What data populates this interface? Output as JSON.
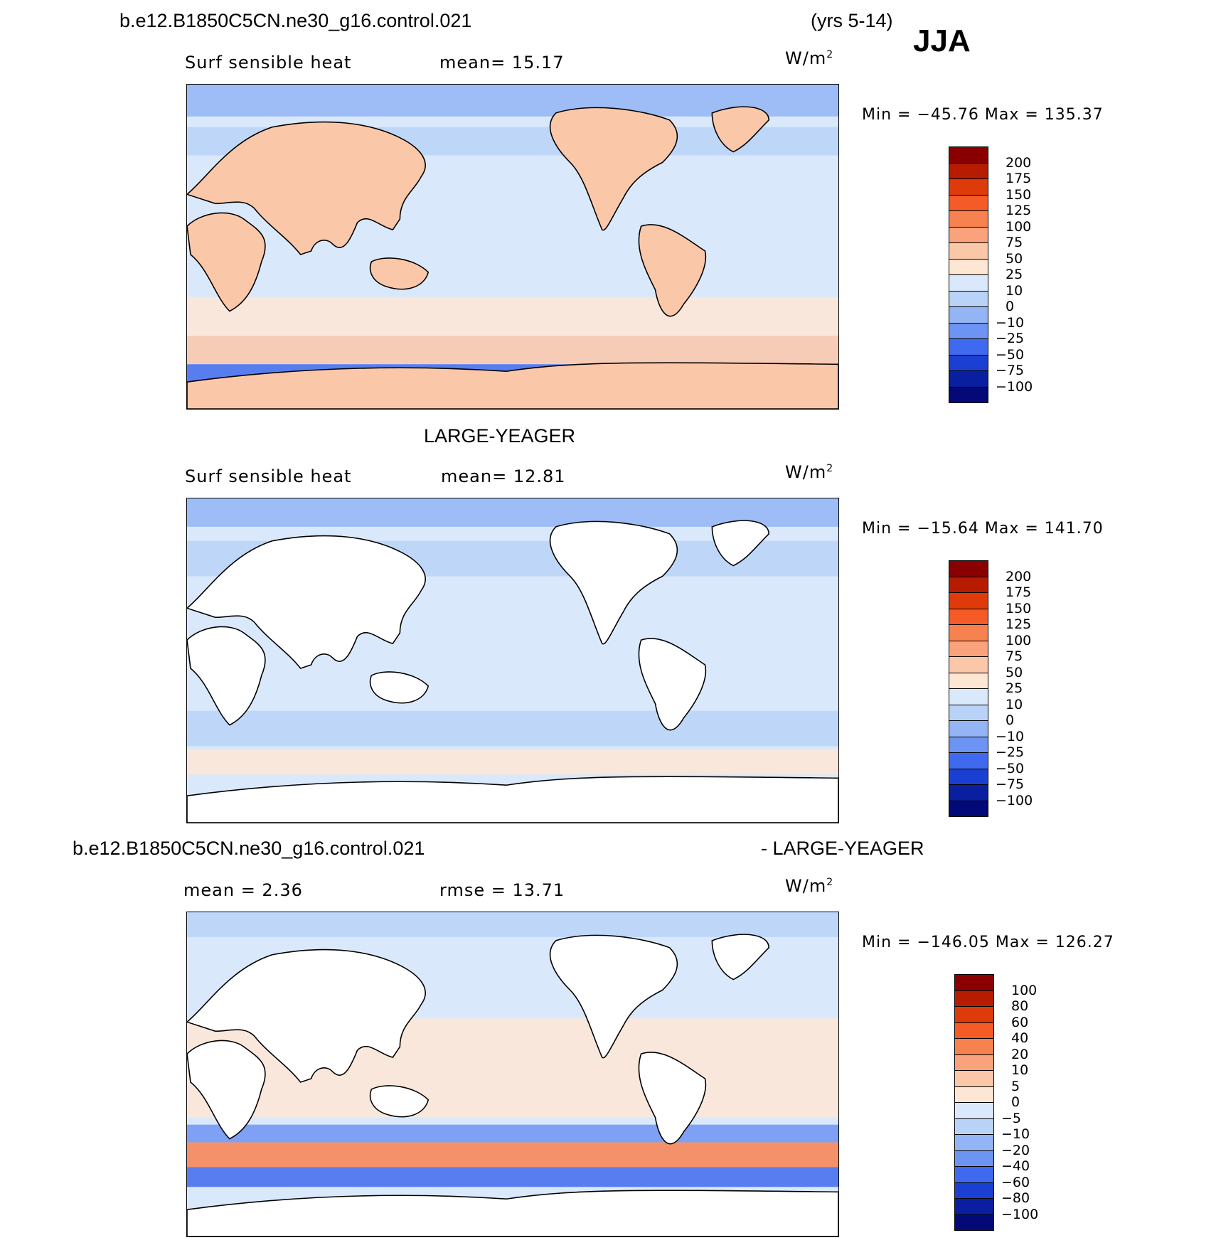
{
  "season": "JJA",
  "years": "(yrs 5-14)",
  "case_name": "b.e12.B1850C5CN.ne30_g16.control.021",
  "obs_name": "LARGE-YEAGER",
  "diff_suffix": "- LARGE-YEAGER",
  "unit_base": "W/m",
  "unit_exp": "2",
  "panels": [
    {
      "variable": "Surf sensible heat",
      "mean_text": "mean=  15.17",
      "stats_text": "Min = −45.76 Max = 135.37",
      "colorbar": "abs"
    },
    {
      "variable": "Surf sensible heat",
      "mean_text": "mean=  12.81",
      "stats_text": "Min = −15.64 Max = 141.70",
      "colorbar": "abs"
    },
    {
      "mean_text": "mean =   2.36",
      "rmse_text": "rmse =  13.71",
      "stats_text": "Min = −146.05 Max = 126.27",
      "colorbar": "diff"
    }
  ],
  "colorbars": {
    "abs": {
      "labels": [
        "200",
        "175",
        "150",
        "125",
        "100",
        "75",
        "50",
        "25",
        "10",
        "0",
        "−10",
        "−25",
        "−50",
        "−75",
        "−100"
      ],
      "colors": [
        "#8a0000",
        "#b81c00",
        "#de3a0a",
        "#f55b26",
        "#f88150",
        "#f9a27c",
        "#fbc7a9",
        "#fde6d4",
        "#d9e9fb",
        "#b9d3f8",
        "#93b5f5",
        "#6d94f3",
        "#3f6aef",
        "#1c3fd3",
        "#0a1ea0",
        "#030a78"
      ]
    },
    "diff": {
      "labels": [
        "100",
        "80",
        "60",
        "40",
        "20",
        "10",
        "5",
        "0",
        "−5",
        "−10",
        "−20",
        "−40",
        "−60",
        "−80",
        "−100"
      ],
      "colors": [
        "#8a0000",
        "#b81c00",
        "#de3a0a",
        "#f55b26",
        "#f88150",
        "#f9a27c",
        "#fbc7a9",
        "#fde6d4",
        "#d9e9fb",
        "#b9d3f8",
        "#93b5f5",
        "#6d94f3",
        "#3f6aef",
        "#1c3fd3",
        "#0a1ea0",
        "#030a78"
      ]
    }
  }
}
